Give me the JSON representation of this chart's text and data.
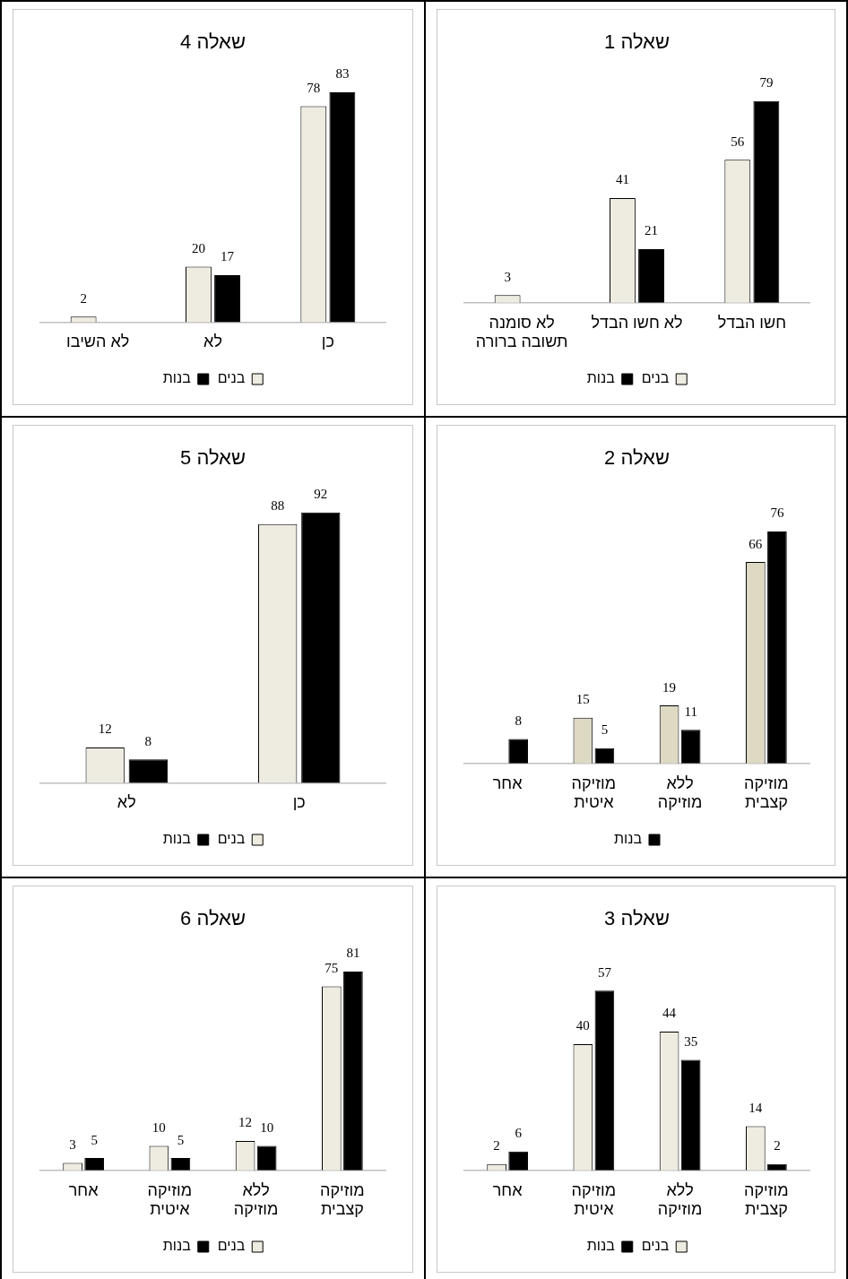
{
  "chart_data": [
    {
      "type": "bar",
      "title": "שאלה 1",
      "categories": [
        "לא סומנה תשובה ברורה",
        "לא חשו הבדל",
        "חשו הבדל"
      ],
      "series": [
        {
          "name": "בנים",
          "color": "#eeece1",
          "values": [
            3,
            41,
            56
          ]
        },
        {
          "name": "בנות",
          "color": "#000000",
          "values": [
            null,
            21,
            79
          ]
        }
      ],
      "data_labels": true,
      "legend": "bottom",
      "tick_labels": "x",
      "grid": false
    },
    {
      "type": "bar",
      "title": "שאלה 4",
      "categories": [
        "לא השיבו",
        "לא",
        "כן"
      ],
      "series": [
        {
          "name": "בנים",
          "color": "#eeece1",
          "values": [
            2,
            20,
            78
          ]
        },
        {
          "name": "בנות",
          "color": "#000000",
          "values": [
            null,
            17,
            83
          ]
        }
      ],
      "data_labels": true,
      "legend": "bottom",
      "tick_labels": "x",
      "grid": false
    },
    {
      "type": "bar",
      "title": "שאלה 2",
      "categories": [
        "אחר",
        "מוזיקה איטית",
        "ללא מוזיקה",
        "מוזיקה קצבית"
      ],
      "series": [
        {
          "color": "#ddd9c3",
          "values": [
            null,
            15,
            19,
            66
          ]
        },
        {
          "name": "בנות",
          "color": "#000000",
          "values": [
            8,
            5,
            11,
            76
          ]
        }
      ],
      "data_labels": true,
      "legend": "bottom",
      "tick_labels": "x",
      "grid": false
    },
    {
      "type": "bar",
      "title": "שאלה 5",
      "categories": [
        "לא",
        "כן"
      ],
      "series": [
        {
          "name": "בנים",
          "color": "#eeece1",
          "values": [
            12,
            88
          ]
        },
        {
          "name": "בנות",
          "color": "#000000",
          "values": [
            8,
            92
          ]
        }
      ],
      "data_labels": true,
      "legend": "bottom",
      "tick_labels": "x",
      "grid": false
    },
    {
      "type": "bar",
      "title": "שאלה 3",
      "categories": [
        "אחר",
        "מוזיקה איטית",
        "ללא מוזיקה",
        "מוזיקה קצבית"
      ],
      "series": [
        {
          "name": "בנים",
          "color": "#eeece1",
          "values": [
            2,
            40,
            44,
            14
          ]
        },
        {
          "name": "בנות",
          "color": "#000000",
          "values": [
            6,
            57,
            35,
            2
          ]
        }
      ],
      "data_labels": true,
      "legend": "bottom",
      "tick_labels": "x",
      "grid": false
    },
    {
      "type": "bar",
      "title": "שאלה 6",
      "categories": [
        "אחר",
        "מוזיקה איטית",
        "ללא מוזיקה",
        "מוזיקה קצבית"
      ],
      "series": [
        {
          "name": "בנים",
          "color": "#eeece1",
          "values": [
            3,
            10,
            12,
            75
          ]
        },
        {
          "name": "בנות",
          "color": "#000000",
          "values": [
            5,
            5,
            10,
            81
          ]
        }
      ],
      "data_labels": true,
      "legend": "bottom",
      "tick_labels": "x",
      "grid": false
    }
  ]
}
